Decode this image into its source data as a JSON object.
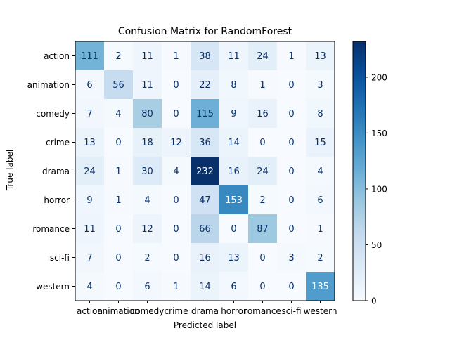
{
  "chart_data": {
    "type": "heatmap",
    "title": "Confusion Matrix for RandomForest",
    "xlabel": "Predicted label",
    "ylabel": "True label",
    "row_labels": [
      "action",
      "animation",
      "comedy",
      "crime",
      "drama",
      "horror",
      "romance",
      "sci-fi",
      "western"
    ],
    "col_labels": [
      "action",
      "animation",
      "comedy",
      "crime",
      "drama",
      "horror",
      "romance",
      "sci-fi",
      "western"
    ],
    "values": [
      [
        111,
        2,
        11,
        1,
        38,
        11,
        24,
        1,
        13
      ],
      [
        6,
        56,
        11,
        0,
        22,
        8,
        1,
        0,
        3
      ],
      [
        7,
        4,
        80,
        0,
        115,
        9,
        16,
        0,
        8
      ],
      [
        13,
        0,
        18,
        12,
        36,
        14,
        0,
        0,
        15
      ],
      [
        24,
        1,
        30,
        4,
        232,
        16,
        24,
        0,
        4
      ],
      [
        9,
        1,
        4,
        0,
        47,
        153,
        2,
        0,
        6
      ],
      [
        11,
        0,
        12,
        0,
        66,
        0,
        87,
        0,
        1
      ],
      [
        7,
        0,
        2,
        0,
        16,
        13,
        0,
        3,
        2
      ],
      [
        4,
        0,
        6,
        1,
        14,
        6,
        0,
        0,
        135
      ]
    ],
    "value_range": [
      0,
      232
    ],
    "colormap": "Blues",
    "colorbar_ticks": [
      0,
      50,
      100,
      150,
      200
    ],
    "grid": false
  }
}
